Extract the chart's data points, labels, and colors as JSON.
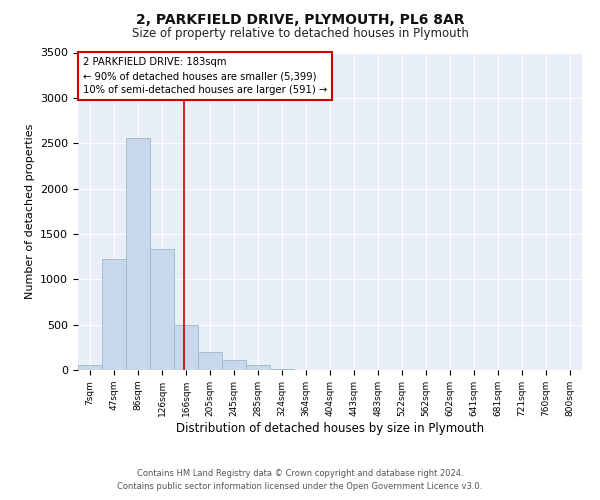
{
  "title": "2, PARKFIELD DRIVE, PLYMOUTH, PL6 8AR",
  "subtitle": "Size of property relative to detached houses in Plymouth",
  "xlabel": "Distribution of detached houses by size in Plymouth",
  "ylabel": "Number of detached properties",
  "bin_labels": [
    "7sqm",
    "47sqm",
    "86sqm",
    "126sqm",
    "166sqm",
    "205sqm",
    "245sqm",
    "285sqm",
    "324sqm",
    "364sqm",
    "404sqm",
    "443sqm",
    "483sqm",
    "522sqm",
    "562sqm",
    "602sqm",
    "641sqm",
    "681sqm",
    "721sqm",
    "760sqm",
    "800sqm"
  ],
  "bar_heights": [
    50,
    1220,
    2560,
    1330,
    500,
    200,
    110,
    50,
    10,
    5,
    0,
    0,
    5,
    0,
    0,
    0,
    0,
    0,
    0,
    0,
    0
  ],
  "bar_color": "#c8d8ea",
  "bar_edge_color": "#9ab8d0",
  "ylim": [
    0,
    3500
  ],
  "yticks": [
    0,
    500,
    1000,
    1500,
    2000,
    2500,
    3000,
    3500
  ],
  "property_size": 183,
  "annotation_title": "2 PARKFIELD DRIVE: 183sqm",
  "annotation_line1": "← 90% of detached houses are smaller (5,399)",
  "annotation_line2": "10% of semi-detached houses are larger (591) →",
  "annotation_box_color": "#ffffff",
  "annotation_box_edge": "#cc0000",
  "vline_color": "#cc0000",
  "footer1": "Contains HM Land Registry data © Crown copyright and database right 2024.",
  "footer2": "Contains public sector information licensed under the Open Government Licence v3.0.",
  "bg_color": "#ffffff",
  "plot_bg_color": "#e8eff6",
  "grid_color": "#ffffff"
}
